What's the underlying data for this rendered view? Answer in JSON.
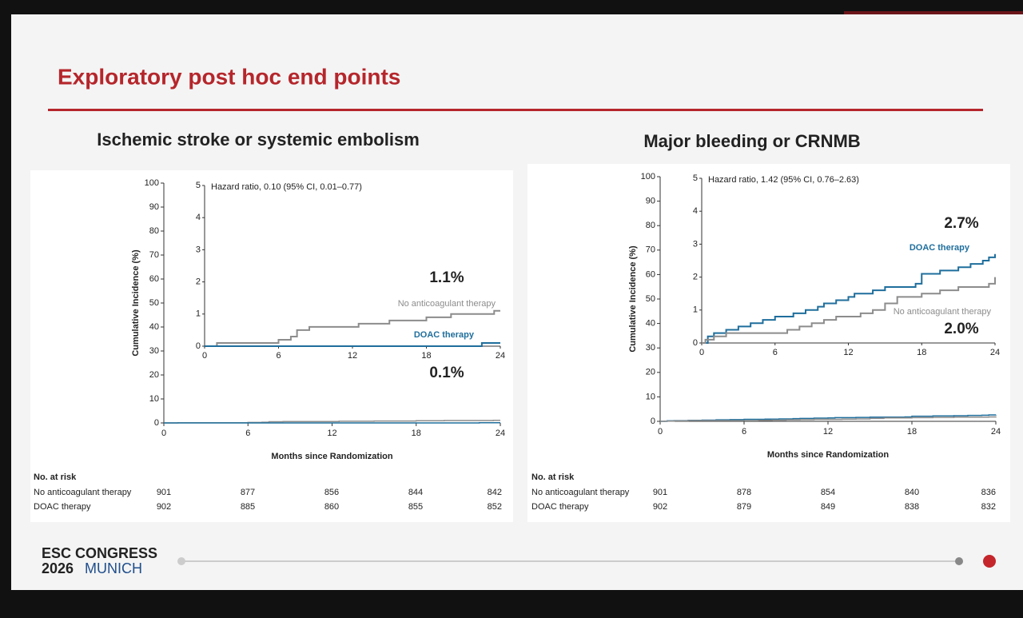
{
  "slide": {
    "title": "Exploratory post hoc end points",
    "footer_line1": "ESC CONGRESS",
    "footer_year": "2026",
    "footer_city": "MUNICH"
  },
  "chart_data": [
    {
      "type": "line",
      "title": "Ischemic stroke or systemic embolism",
      "xlabel": "Months since Randomization",
      "ylabel": "Cumulative Incidence (%)",
      "xlim": [
        0,
        24
      ],
      "xticks": [
        0,
        6,
        12,
        18,
        24
      ],
      "ylim": [
        0,
        100
      ],
      "yticks": [
        0,
        10,
        20,
        30,
        40,
        50,
        60,
        70,
        80,
        90,
        100
      ],
      "inset": {
        "note": "Hazard ratio, 0.10 (95% CI, 0.01–0.77)",
        "xlim": [
          0,
          24
        ],
        "xticks": [
          0,
          6,
          12,
          18,
          24
        ],
        "ylim": [
          0,
          5
        ],
        "yticks": [
          0,
          1,
          2,
          3,
          4,
          5
        ]
      },
      "annotations": [
        "1.1%",
        "0.1%"
      ],
      "series": [
        {
          "name": "No anticoagulant therapy",
          "color": "#8c8c8c",
          "x": [
            0,
            1,
            1,
            6,
            6,
            7,
            7,
            7.5,
            7.5,
            8.5,
            8.5,
            12.5,
            12.5,
            15,
            15,
            18,
            18,
            20,
            20,
            23.5,
            23.5,
            24
          ],
          "values": [
            0,
            0,
            0.1,
            0.1,
            0.2,
            0.2,
            0.3,
            0.3,
            0.5,
            0.5,
            0.6,
            0.6,
            0.7,
            0.7,
            0.8,
            0.8,
            0.9,
            0.9,
            1.0,
            1.0,
            1.1,
            1.1
          ]
        },
        {
          "name": "DOAC therapy",
          "color": "#1f6e9c",
          "x": [
            0,
            22.5,
            22.5,
            24
          ],
          "values": [
            0,
            0,
            0.1,
            0.1
          ]
        }
      ],
      "at_risk": {
        "title": "No. at risk",
        "rows": [
          {
            "name": "No anticoagulant therapy",
            "values": [
              901,
              877,
              856,
              844,
              842
            ]
          },
          {
            "name": "DOAC therapy",
            "values": [
              902,
              885,
              860,
              855,
              852
            ]
          }
        ]
      }
    },
    {
      "type": "line",
      "title": "Major bleeding or CRNMB",
      "xlabel": "Months since Randomization",
      "ylabel": "Cumulative Incidence (%)",
      "xlim": [
        0,
        24
      ],
      "xticks": [
        0,
        6,
        12,
        18,
        24
      ],
      "ylim": [
        0,
        100
      ],
      "yticks": [
        0,
        10,
        20,
        30,
        40,
        50,
        60,
        70,
        80,
        90,
        100
      ],
      "inset": {
        "note": "Hazard ratio, 1.42 (95% CI, 0.76–2.63)",
        "xlim": [
          0,
          24
        ],
        "xticks": [
          0,
          6,
          12,
          18,
          24
        ],
        "ylim": [
          0,
          5
        ],
        "yticks": [
          0,
          1,
          2,
          3,
          4,
          5
        ]
      },
      "annotations": [
        "2.7%",
        "2.0%"
      ],
      "series": [
        {
          "name": "DOAC therapy",
          "color": "#1f6e9c",
          "x": [
            0,
            0.5,
            0.5,
            1,
            1,
            2,
            2,
            3,
            3,
            4,
            4,
            5,
            5,
            6,
            6,
            7.5,
            7.5,
            8.5,
            8.5,
            9.5,
            9.5,
            10,
            10,
            11,
            11,
            12,
            12,
            12.5,
            12.5,
            14,
            14,
            15,
            15,
            17.5,
            17.5,
            18,
            18,
            19.5,
            19.5,
            21,
            21,
            22,
            22,
            23,
            23,
            23.5,
            23.5,
            24,
            24
          ],
          "values": [
            0,
            0,
            0.2,
            0.2,
            0.3,
            0.3,
            0.4,
            0.4,
            0.5,
            0.5,
            0.6,
            0.6,
            0.7,
            0.7,
            0.8,
            0.8,
            0.9,
            0.9,
            1.0,
            1.0,
            1.1,
            1.1,
            1.2,
            1.2,
            1.3,
            1.3,
            1.4,
            1.4,
            1.5,
            1.5,
            1.6,
            1.6,
            1.7,
            1.7,
            1.8,
            1.8,
            2.1,
            2.1,
            2.2,
            2.2,
            2.3,
            2.3,
            2.4,
            2.4,
            2.5,
            2.5,
            2.6,
            2.6,
            2.7
          ]
        },
        {
          "name": "No anticoagulant therapy",
          "color": "#8c8c8c",
          "x": [
            0,
            0.3,
            0.3,
            1,
            1,
            2,
            2,
            7,
            7,
            8,
            8,
            9,
            9,
            10,
            10,
            11,
            11,
            13,
            13,
            14,
            14,
            15,
            15,
            16,
            16,
            18,
            18,
            19.5,
            19.5,
            21,
            21,
            23.5,
            23.5,
            24,
            24
          ],
          "values": [
            0,
            0,
            0.1,
            0.1,
            0.2,
            0.2,
            0.3,
            0.3,
            0.4,
            0.4,
            0.5,
            0.5,
            0.6,
            0.6,
            0.7,
            0.7,
            0.8,
            0.8,
            0.9,
            0.9,
            1.0,
            1.0,
            1.2,
            1.2,
            1.4,
            1.4,
            1.5,
            1.5,
            1.6,
            1.6,
            1.7,
            1.7,
            1.8,
            1.8,
            2.0
          ]
        }
      ],
      "at_risk": {
        "title": "No. at risk",
        "rows": [
          {
            "name": "No anticoagulant therapy",
            "values": [
              901,
              878,
              854,
              840,
              836
            ]
          },
          {
            "name": "DOAC therapy",
            "values": [
              902,
              879,
              849,
              838,
              832
            ]
          }
        ]
      }
    }
  ]
}
